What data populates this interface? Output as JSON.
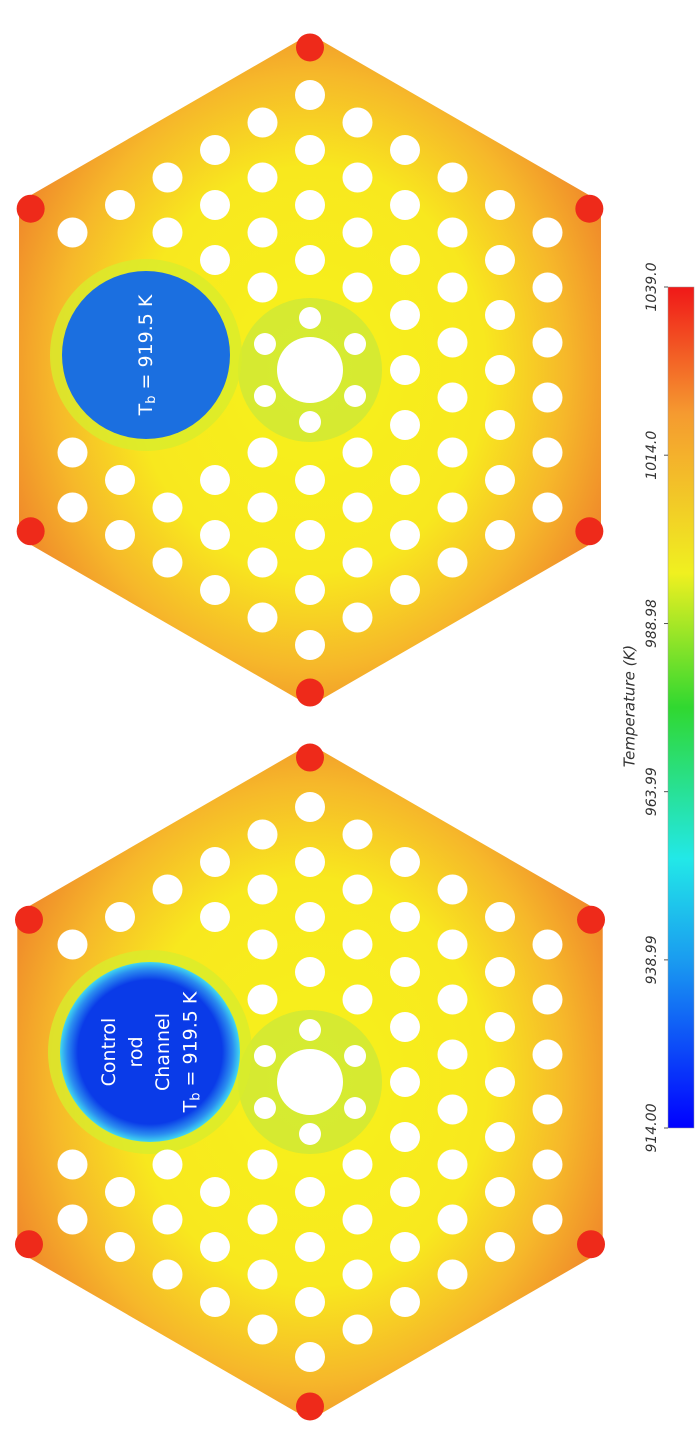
{
  "chart_data": {
    "type": "contour",
    "colorbar": {
      "label": "Temperature (K)",
      "lim": [
        914.0,
        1039.0
      ],
      "ticks": [
        {
          "value": 914.0,
          "label": "914.00"
        },
        938.99,
        963.99,
        988.98,
        {
          "value": 1014.0,
          "label": "1014.0"
        },
        {
          "value": 1039.0,
          "label": "1039.0"
        }
      ]
    },
    "panels": [
      {
        "annotation": {
          "symbol": "T",
          "subscript": "b",
          "rest": " = 919.5 K"
        }
      },
      {
        "annotation": {
          "lines": [
            "Control",
            "rod",
            "Channel"
          ],
          "symbol": "T",
          "subscript": "b",
          "rest": " = 919.5 K"
        }
      }
    ]
  }
}
